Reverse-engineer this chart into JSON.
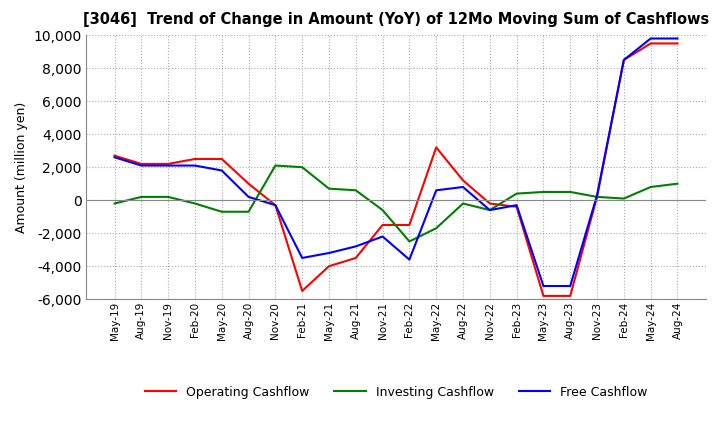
{
  "title": "[3046]  Trend of Change in Amount (YoY) of 12Mo Moving Sum of Cashflows",
  "ylabel": "Amount (million yen)",
  "ylim": [
    -6000,
    10000
  ],
  "yticks": [
    -6000,
    -4000,
    -2000,
    0,
    2000,
    4000,
    6000,
    8000,
    10000
  ],
  "x_labels": [
    "May-19",
    "Aug-19",
    "Nov-19",
    "Feb-20",
    "May-20",
    "Aug-20",
    "Nov-20",
    "Feb-21",
    "May-21",
    "Aug-21",
    "Nov-21",
    "Feb-22",
    "May-22",
    "Aug-22",
    "Nov-22",
    "Feb-23",
    "May-23",
    "Aug-23",
    "Nov-23",
    "Feb-24",
    "May-24",
    "Aug-24"
  ],
  "operating": [
    2700,
    2200,
    2200,
    2500,
    2500,
    1000,
    -300,
    -5500,
    -4000,
    -3500,
    -1500,
    -1500,
    3200,
    1200,
    -200,
    -400,
    -5800,
    -5800,
    200,
    8500,
    9500,
    9500
  ],
  "investing": [
    -200,
    200,
    200,
    -200,
    -700,
    -700,
    2100,
    2000,
    700,
    600,
    -600,
    -2500,
    -1700,
    -200,
    -600,
    400,
    500,
    500,
    200,
    100,
    800,
    1000
  ],
  "free": [
    2600,
    2100,
    2100,
    2100,
    1800,
    200,
    -300,
    -3500,
    -3200,
    -2800,
    -2200,
    -3600,
    600,
    800,
    -600,
    -300,
    -5200,
    -5200,
    300,
    8500,
    9800,
    9800
  ],
  "operating_color": "#ff0000",
  "investing_color": "#008000",
  "free_color": "#0000ff",
  "background_color": "#ffffff",
  "grid_color": "#aaaaaa"
}
